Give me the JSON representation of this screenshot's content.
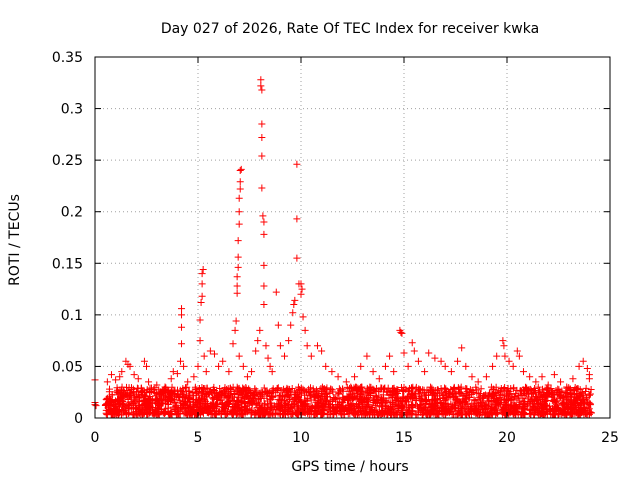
{
  "chart_data": {
    "type": "scatter",
    "title": "Day 027 of 2026, Rate Of TEC Index for receiver kwka",
    "xlabel": "GPS time / hours",
    "ylabel": "ROTI / TECUs",
    "xlim": [
      0,
      25
    ],
    "ylim": [
      0,
      0.35
    ],
    "x_ticks": [
      "0",
      "5",
      "10",
      "15",
      "20",
      "25"
    ],
    "y_ticks": [
      "0",
      "0.05",
      "0.1",
      "0.15",
      "0.2",
      "0.25",
      "0.3",
      "0.35"
    ],
    "grid": true,
    "marker": "+",
    "color": "#ff0000",
    "background_band": {
      "x_range": [
        0.5,
        24.1
      ],
      "y_range": [
        0.003,
        0.03
      ],
      "note": "dense continuous cloud of ROTI points across the day"
    },
    "series": [
      {
        "name": "ROTI",
        "points": [
          [
            0.0,
            0.037
          ],
          [
            0.0,
            0.015
          ],
          [
            0.0,
            0.013
          ],
          [
            0.05,
            0.012
          ],
          [
            0.6,
            0.035
          ],
          [
            0.8,
            0.042
          ],
          [
            1.0,
            0.037
          ],
          [
            1.2,
            0.04
          ],
          [
            1.3,
            0.045
          ],
          [
            1.5,
            0.055
          ],
          [
            1.6,
            0.052
          ],
          [
            1.7,
            0.05
          ],
          [
            1.9,
            0.042
          ],
          [
            2.1,
            0.038
          ],
          [
            2.4,
            0.055
          ],
          [
            2.5,
            0.05
          ],
          [
            2.6,
            0.035
          ],
          [
            3.0,
            0.032
          ],
          [
            3.4,
            0.03
          ],
          [
            3.7,
            0.038
          ],
          [
            3.8,
            0.045
          ],
          [
            4.0,
            0.043
          ],
          [
            4.2,
            0.106
          ],
          [
            4.2,
            0.1
          ],
          [
            4.2,
            0.088
          ],
          [
            4.2,
            0.072
          ],
          [
            4.15,
            0.055
          ],
          [
            4.3,
            0.05
          ],
          [
            4.5,
            0.035
          ],
          [
            4.8,
            0.04
          ],
          [
            5.0,
            0.05
          ],
          [
            5.1,
            0.075
          ],
          [
            5.1,
            0.095
          ],
          [
            5.15,
            0.112
          ],
          [
            5.2,
            0.118
          ],
          [
            5.2,
            0.13
          ],
          [
            5.2,
            0.14
          ],
          [
            5.25,
            0.144
          ],
          [
            5.3,
            0.06
          ],
          [
            5.4,
            0.045
          ],
          [
            5.6,
            0.065
          ],
          [
            5.8,
            0.062
          ],
          [
            6.0,
            0.05
          ],
          [
            6.2,
            0.055
          ],
          [
            6.5,
            0.045
          ],
          [
            6.7,
            0.072
          ],
          [
            6.8,
            0.085
          ],
          [
            6.85,
            0.094
          ],
          [
            6.9,
            0.121
          ],
          [
            6.9,
            0.128
          ],
          [
            6.9,
            0.137
          ],
          [
            6.95,
            0.146
          ],
          [
            6.95,
            0.156
          ],
          [
            6.95,
            0.172
          ],
          [
            7.0,
            0.188
          ],
          [
            7.0,
            0.2
          ],
          [
            7.0,
            0.213
          ],
          [
            7.05,
            0.222
          ],
          [
            7.05,
            0.229
          ],
          [
            7.05,
            0.24
          ],
          [
            7.1,
            0.241
          ],
          [
            7.0,
            0.06
          ],
          [
            7.2,
            0.05
          ],
          [
            7.4,
            0.04
          ],
          [
            7.6,
            0.045
          ],
          [
            7.8,
            0.065
          ],
          [
            7.9,
            0.075
          ],
          [
            8.0,
            0.085
          ],
          [
            8.05,
            0.328
          ],
          [
            8.05,
            0.322
          ],
          [
            8.1,
            0.318
          ],
          [
            8.1,
            0.285
          ],
          [
            8.1,
            0.272
          ],
          [
            8.1,
            0.254
          ],
          [
            8.1,
            0.223
          ],
          [
            8.15,
            0.196
          ],
          [
            8.2,
            0.19
          ],
          [
            8.2,
            0.178
          ],
          [
            8.2,
            0.148
          ],
          [
            8.2,
            0.128
          ],
          [
            8.2,
            0.11
          ],
          [
            8.3,
            0.07
          ],
          [
            8.4,
            0.058
          ],
          [
            8.5,
            0.05
          ],
          [
            8.6,
            0.045
          ],
          [
            8.8,
            0.122
          ],
          [
            8.9,
            0.09
          ],
          [
            9.0,
            0.07
          ],
          [
            9.2,
            0.06
          ],
          [
            9.4,
            0.075
          ],
          [
            9.5,
            0.09
          ],
          [
            9.6,
            0.102
          ],
          [
            9.65,
            0.11
          ],
          [
            9.7,
            0.114
          ],
          [
            9.8,
            0.246
          ],
          [
            9.8,
            0.193
          ],
          [
            9.8,
            0.155
          ],
          [
            9.9,
            0.13
          ],
          [
            10.0,
            0.13
          ],
          [
            10.0,
            0.12
          ],
          [
            10.05,
            0.125
          ],
          [
            10.1,
            0.098
          ],
          [
            10.2,
            0.085
          ],
          [
            10.3,
            0.07
          ],
          [
            10.5,
            0.06
          ],
          [
            10.8,
            0.07
          ],
          [
            11.0,
            0.065
          ],
          [
            11.2,
            0.05
          ],
          [
            11.5,
            0.045
          ],
          [
            11.8,
            0.04
          ],
          [
            12.2,
            0.035
          ],
          [
            12.6,
            0.04
          ],
          [
            12.9,
            0.05
          ],
          [
            13.2,
            0.06
          ],
          [
            13.5,
            0.045
          ],
          [
            13.8,
            0.038
          ],
          [
            14.1,
            0.05
          ],
          [
            14.3,
            0.06
          ],
          [
            14.5,
            0.045
          ],
          [
            14.8,
            0.085
          ],
          [
            14.85,
            0.083
          ],
          [
            14.9,
            0.082
          ],
          [
            15.0,
            0.063
          ],
          [
            15.2,
            0.05
          ],
          [
            15.4,
            0.073
          ],
          [
            15.5,
            0.065
          ],
          [
            15.7,
            0.055
          ],
          [
            16.0,
            0.045
          ],
          [
            16.2,
            0.063
          ],
          [
            16.5,
            0.058
          ],
          [
            16.8,
            0.055
          ],
          [
            17.0,
            0.05
          ],
          [
            17.3,
            0.045
          ],
          [
            17.6,
            0.055
          ],
          [
            17.8,
            0.068
          ],
          [
            18.0,
            0.05
          ],
          [
            18.3,
            0.04
          ],
          [
            18.6,
            0.035
          ],
          [
            19.0,
            0.04
          ],
          [
            19.3,
            0.05
          ],
          [
            19.5,
            0.06
          ],
          [
            19.8,
            0.075
          ],
          [
            19.85,
            0.07
          ],
          [
            19.9,
            0.06
          ],
          [
            20.1,
            0.055
          ],
          [
            20.3,
            0.05
          ],
          [
            20.5,
            0.065
          ],
          [
            20.6,
            0.06
          ],
          [
            20.8,
            0.045
          ],
          [
            21.1,
            0.04
          ],
          [
            21.4,
            0.035
          ],
          [
            21.7,
            0.04
          ],
          [
            22.0,
            0.032
          ],
          [
            22.3,
            0.042
          ],
          [
            22.6,
            0.035
          ],
          [
            22.9,
            0.03
          ],
          [
            23.2,
            0.038
          ],
          [
            23.5,
            0.05
          ],
          [
            23.7,
            0.055
          ],
          [
            23.9,
            0.048
          ],
          [
            24.0,
            0.042
          ],
          [
            24.0,
            0.038
          ]
        ]
      }
    ]
  }
}
